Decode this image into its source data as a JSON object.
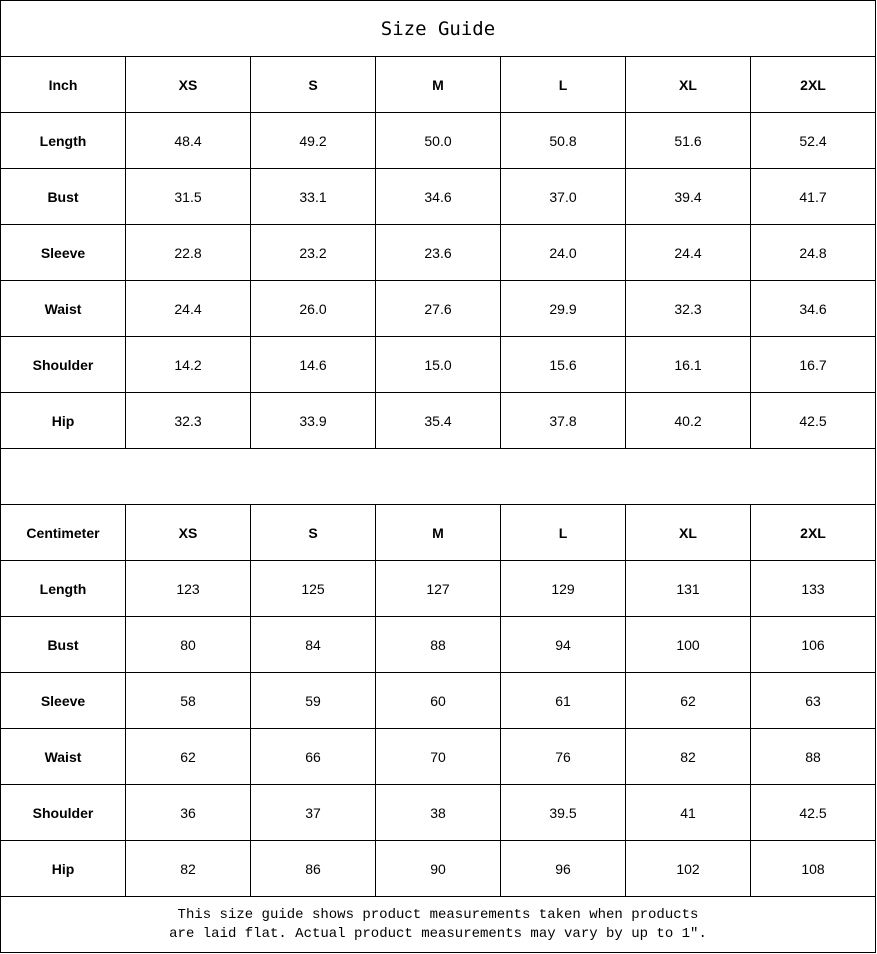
{
  "title": "Size Guide",
  "inch_table": {
    "unit_label": "Inch",
    "sizes": [
      "XS",
      "S",
      "M",
      "L",
      "XL",
      "2XL"
    ],
    "rows": [
      {
        "label": "Length",
        "values": [
          "48.4",
          "49.2",
          "50.0",
          "50.8",
          "51.6",
          "52.4"
        ]
      },
      {
        "label": "Bust",
        "values": [
          "31.5",
          "33.1",
          "34.6",
          "37.0",
          "39.4",
          "41.7"
        ]
      },
      {
        "label": "Sleeve",
        "values": [
          "22.8",
          "23.2",
          "23.6",
          "24.0",
          "24.4",
          "24.8"
        ]
      },
      {
        "label": "Waist",
        "values": [
          "24.4",
          "26.0",
          "27.6",
          "29.9",
          "32.3",
          "34.6"
        ]
      },
      {
        "label": "Shoulder",
        "values": [
          "14.2",
          "14.6",
          "15.0",
          "15.6",
          "16.1",
          "16.7"
        ]
      },
      {
        "label": "Hip",
        "values": [
          "32.3",
          "33.9",
          "35.4",
          "37.8",
          "40.2",
          "42.5"
        ]
      }
    ]
  },
  "cm_table": {
    "unit_label": "Centimeter",
    "sizes": [
      "XS",
      "S",
      "M",
      "L",
      "XL",
      "2XL"
    ],
    "rows": [
      {
        "label": "Length",
        "values": [
          "123",
          "125",
          "127",
          "129",
          "131",
          "133"
        ]
      },
      {
        "label": "Bust",
        "values": [
          "80",
          "84",
          "88",
          "94",
          "100",
          "106"
        ]
      },
      {
        "label": "Sleeve",
        "values": [
          "58",
          "59",
          "60",
          "61",
          "62",
          "63"
        ]
      },
      {
        "label": "Waist",
        "values": [
          "62",
          "66",
          "70",
          "76",
          "82",
          "88"
        ]
      },
      {
        "label": "Shoulder",
        "values": [
          "36",
          "37",
          "38",
          "39.5",
          "41",
          "42.5"
        ]
      },
      {
        "label": "Hip",
        "values": [
          "82",
          "86",
          "90",
          "96",
          "102",
          "108"
        ]
      }
    ]
  },
  "footer": {
    "line1": "This size guide shows product measurements taken when products",
    "line2": "are laid flat. Actual product measurements may vary by up to 1″."
  }
}
